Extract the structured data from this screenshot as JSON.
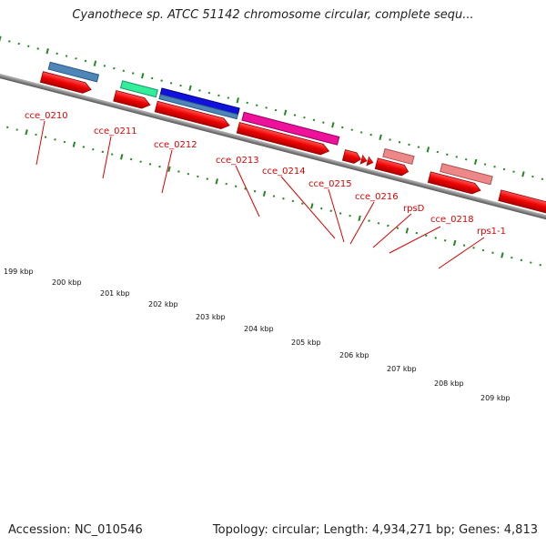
{
  "title": "Cyanothece sp. ATCC 51142 chromosome circular, complete sequ...",
  "accession": "Accession: NC_010546",
  "summary": "Topology: circular; Length: 4,934,271 bp; Genes: 4,813",
  "colors": {
    "strand_red": "#ee0000",
    "backbone": "#888888",
    "tick_green": "#228822",
    "label_red": "#dd0000",
    "steel_blue": "#4f86b8",
    "mint": "#33ee99",
    "blue": "#1111dd",
    "magenta": "#ee1199",
    "salmon": "#ee8888"
  },
  "scale_labels": [
    "199 kbp",
    "200 kbp",
    "201 kbp",
    "202 kbp",
    "203 kbp",
    "204 kbp",
    "205 kbp",
    "206 kbp",
    "207 kbp",
    "208 kbp",
    "209 kbp"
  ],
  "gene_labels": [
    "cce_0210",
    "cce_0211",
    "cce_0212",
    "cce_0213",
    "cce_0214",
    "cce_0215",
    "cce_0216",
    "rpsD",
    "cce_0218",
    "rps1-1"
  ],
  "features": [
    {
      "track": "feature",
      "color_key": "steel_blue",
      "label": "cce_0210"
    },
    {
      "track": "feature",
      "color_key": "mint",
      "label": "cce_0211"
    },
    {
      "track": "feature",
      "color_key": "blue",
      "label": "cce_0212"
    },
    {
      "track": "feature",
      "color_key": "steel_blue",
      "label": "cce_0212"
    },
    {
      "track": "feature",
      "color_key": "magenta",
      "label": "cce_0213"
    },
    {
      "track": "feature",
      "color_key": "salmon",
      "label": "rpsD"
    },
    {
      "track": "feature",
      "color_key": "salmon",
      "label": "rps1-1"
    }
  ]
}
